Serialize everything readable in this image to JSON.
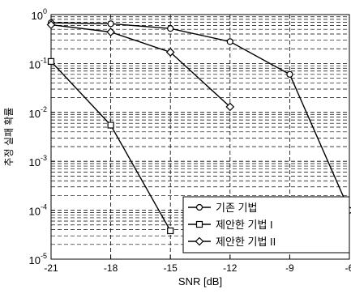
{
  "chart_data": {
    "type": "line",
    "title": "",
    "xlabel": "SNR [dB]",
    "ylabel": "추정 실패 확률",
    "x_scale": "linear",
    "y_scale": "log",
    "xlim": [
      -21,
      -6
    ],
    "ylim": [
      1e-05,
      1
    ],
    "xticks": [
      -21,
      -18,
      -15,
      -12,
      -9,
      -6
    ],
    "xtick_labels": [
      "-21",
      "-18",
      "-15",
      "-12",
      "-9",
      "-6"
    ],
    "yticks": [
      1e-05,
      0.0001,
      0.001,
      0.01,
      0.1,
      1
    ],
    "ytick_labels": [
      {
        "base": "10",
        "exp": "-5"
      },
      {
        "base": "10",
        "exp": "-4"
      },
      {
        "base": "10",
        "exp": "-3"
      },
      {
        "base": "10",
        "exp": "-2"
      },
      {
        "base": "10",
        "exp": "-1"
      },
      {
        "base": "10",
        "exp": "0"
      }
    ],
    "grid": true,
    "legend_position": "bottom-right",
    "series": [
      {
        "name": "기존 기법",
        "marker": "circle",
        "color": "#000000",
        "x": [
          -21,
          -18,
          -15,
          -12,
          -9,
          -6
        ],
        "y": [
          0.68,
          0.65,
          0.52,
          0.28,
          0.06,
          0.0001
        ]
      },
      {
        "name": "제안한 기법 I",
        "marker": "square",
        "color": "#000000",
        "x": [
          -21,
          -18,
          -15
        ],
        "y": [
          0.11,
          0.0055,
          3.8e-05
        ]
      },
      {
        "name": "제안한 기법 II",
        "marker": "diamond",
        "color": "#000000",
        "x": [
          -21,
          -18,
          -15,
          -12
        ],
        "y": [
          0.62,
          0.44,
          0.17,
          0.013
        ]
      }
    ]
  }
}
